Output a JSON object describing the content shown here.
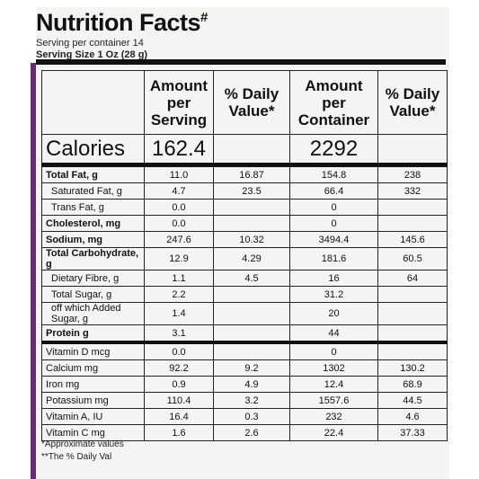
{
  "header": {
    "title": "Nutrition Facts",
    "title_mark": "#",
    "servings": "Serving per container 14",
    "serving_size": "Serving Size 1 Oz (28 g)"
  },
  "table": {
    "columns": [
      "Amount per Serving",
      "% Daily Value*",
      "Amount per Container",
      "% Daily Value*"
    ],
    "calories": {
      "name": "Calories",
      "serving": "162.4",
      "container": "2292"
    },
    "rows": [
      {
        "name": "Total Fat, g",
        "serving": "11.0",
        "dv_serving": "16.87",
        "container": "154.8",
        "dv_container": "238"
      },
      {
        "name": "Saturated Fat, g",
        "serving": "4.7",
        "dv_serving": "23.5",
        "container": "66.4",
        "dv_container": "332"
      },
      {
        "name": "Trans Fat, g",
        "serving": "0.0",
        "container": "0"
      },
      {
        "name": "Cholesterol, mg",
        "serving": "0.0",
        "container": "0"
      },
      {
        "name": "Sodium, mg",
        "serving": "247.6",
        "dv_serving": "10.32",
        "container": "3494.4",
        "dv_container": "145.6"
      },
      {
        "name": "Total Carbohydrate, g",
        "serving": "12.9",
        "dv_serving": "4.29",
        "container": "181.6",
        "dv_container": "60.5"
      },
      {
        "name": "Dietary Fibre, g",
        "serving": "1.1",
        "dv_serving": "4.5",
        "container": "16",
        "dv_container": "64"
      },
      {
        "name": "Total Sugar, g",
        "serving": "2.2",
        "container": "31.2"
      },
      {
        "name": "off which Added Sugar, g",
        "serving": "1.4",
        "container": "20"
      },
      {
        "name": "Protein g",
        "serving": "3.1",
        "container": "44"
      },
      {
        "name": "Vitamin D mcg",
        "serving": "0.0",
        "container": "0"
      },
      {
        "name": "Calcium mg",
        "serving": "92.2",
        "dv_serving": "9.2",
        "container": "1302",
        "dv_container": "130.2"
      },
      {
        "name": "Iron mg",
        "serving": "0.9",
        "dv_serving": "4.9",
        "container": "12.4",
        "dv_container": "68.9"
      },
      {
        "name": "Potassium mg",
        "serving": "110.4",
        "dv_serving": "3.2",
        "container": "1557.6",
        "dv_container": "44.5"
      },
      {
        "name": "Vitamin A, IU",
        "serving": "16.4",
        "dv_serving": "0.3",
        "container": "232",
        "dv_container": "4.6"
      },
      {
        "name": "Vitamin C mg",
        "serving": "1.6",
        "dv_serving": "2.6",
        "container": "22.4",
        "dv_container": "37.33"
      }
    ]
  },
  "footnotes": [
    "*Approximate values",
    "**The % Daily Val"
  ]
}
